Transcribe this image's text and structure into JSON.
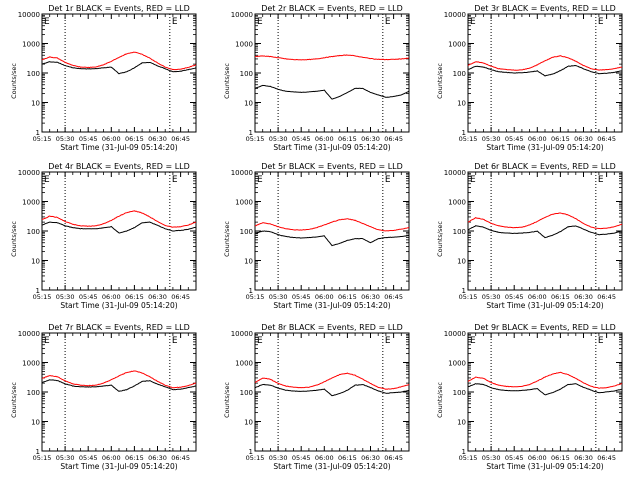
{
  "common": {
    "xlabel": "Start Time (31-Jul-09 05:14:20)",
    "ylabel": "Counts/sec",
    "x_ticks": [
      "05:15",
      "05:30",
      "05:45",
      "06:00",
      "06:15",
      "06:30",
      "06:45"
    ],
    "y_ticks": [
      "1",
      "10",
      "100",
      "1000",
      "10000"
    ],
    "marker": "E",
    "colors": {
      "events": "#000000",
      "lld": "#ff0000"
    }
  },
  "chart_data": [
    {
      "type": "line",
      "title": "Det 1r BLACK = Events, RED = LLD",
      "x_unit": "minutes after 05:15",
      "xlim": [
        0,
        100
      ],
      "ylim": [
        1,
        10000
      ],
      "yscale": "log",
      "vlines": [
        15,
        83
      ],
      "x": [
        0,
        5,
        10,
        15,
        20,
        25,
        30,
        35,
        40,
        45,
        50,
        55,
        60,
        65,
        70,
        75,
        80,
        85,
        90,
        95,
        100
      ],
      "series": [
        {
          "name": "BLACK = Events",
          "color": "#000000",
          "values": [
            200,
            240,
            230,
            180,
            150,
            140,
            138,
            140,
            150,
            160,
            95,
            110,
            150,
            220,
            230,
            175,
            140,
            110,
            115,
            130,
            150
          ]
        },
        {
          "name": "RED = LLD",
          "color": "#ff0000",
          "values": [
            280,
            350,
            320,
            230,
            180,
            160,
            155,
            160,
            190,
            250,
            340,
            450,
            510,
            430,
            320,
            220,
            160,
            130,
            135,
            155,
            190
          ]
        }
      ]
    },
    {
      "type": "line",
      "title": "Det 2r BLACK = Events, RED = LLD",
      "x_unit": "minutes after 05:15",
      "xlim": [
        0,
        100
      ],
      "ylim": [
        1,
        10000
      ],
      "yscale": "log",
      "vlines": [
        15,
        83
      ],
      "x": [
        0,
        5,
        10,
        15,
        20,
        25,
        30,
        35,
        40,
        45,
        50,
        55,
        60,
        65,
        70,
        75,
        80,
        85,
        90,
        95,
        100
      ],
      "series": [
        {
          "name": "BLACK = Events",
          "color": "#000000",
          "values": [
            30,
            38,
            35,
            28,
            24,
            23,
            22,
            23,
            24,
            26,
            13,
            16,
            22,
            30,
            30,
            22,
            18,
            15,
            16,
            18,
            24
          ]
        },
        {
          "name": "RED = LLD",
          "color": "#ff0000",
          "values": [
            360,
            380,
            360,
            330,
            300,
            285,
            280,
            285,
            300,
            330,
            360,
            390,
            410,
            380,
            340,
            310,
            290,
            285,
            290,
            300,
            320
          ]
        }
      ]
    },
    {
      "type": "line",
      "title": "Det 3r BLACK = Events, RED = LLD",
      "x_unit": "minutes after 05:15",
      "xlim": [
        0,
        100
      ],
      "ylim": [
        1,
        10000
      ],
      "yscale": "log",
      "vlines": [
        15,
        83
      ],
      "x": [
        0,
        5,
        10,
        15,
        20,
        25,
        30,
        35,
        40,
        45,
        50,
        55,
        60,
        65,
        70,
        75,
        80,
        85,
        90,
        95,
        100
      ],
      "series": [
        {
          "name": "BLACK = Events",
          "color": "#000000",
          "values": [
            130,
            170,
            160,
            130,
            110,
            105,
            100,
            102,
            108,
            118,
            80,
            92,
            120,
            170,
            180,
            140,
            110,
            95,
            98,
            105,
            120
          ]
        },
        {
          "name": "RED = LLD",
          "color": "#ff0000",
          "values": [
            180,
            240,
            220,
            170,
            140,
            130,
            125,
            128,
            145,
            190,
            260,
            340,
            380,
            330,
            250,
            180,
            140,
            125,
            130,
            140,
            160
          ]
        }
      ]
    },
    {
      "type": "line",
      "title": "Det 4r BLACK = Events, RED = LLD",
      "x_unit": "minutes after 05:15",
      "xlim": [
        0,
        100
      ],
      "ylim": [
        1,
        10000
      ],
      "yscale": "log",
      "vlines": [
        15,
        83
      ],
      "x": [
        0,
        5,
        10,
        15,
        20,
        25,
        30,
        35,
        40,
        45,
        50,
        55,
        60,
        65,
        70,
        75,
        80,
        85,
        90,
        95,
        100
      ],
      "series": [
        {
          "name": "BLACK = Events",
          "color": "#000000",
          "values": [
            160,
            200,
            190,
            150,
            130,
            120,
            118,
            120,
            128,
            140,
            85,
            100,
            130,
            190,
            200,
            155,
            120,
            100,
            105,
            115,
            135
          ]
        },
        {
          "name": "RED = LLD",
          "color": "#ff0000",
          "values": [
            240,
            320,
            290,
            210,
            170,
            150,
            145,
            150,
            175,
            230,
            320,
            420,
            480,
            410,
            300,
            210,
            155,
            135,
            140,
            160,
            200
          ]
        }
      ]
    },
    {
      "type": "line",
      "title": "Det 5r BLACK = Events, RED = LLD",
      "x_unit": "minutes after 05:15",
      "xlim": [
        0,
        100
      ],
      "ylim": [
        1,
        10000
      ],
      "yscale": "log",
      "vlines": [
        15,
        83
      ],
      "x": [
        0,
        5,
        10,
        15,
        20,
        25,
        30,
        35,
        40,
        45,
        50,
        55,
        60,
        65,
        70,
        75,
        80,
        85,
        90,
        95,
        100
      ],
      "series": [
        {
          "name": "BLACK = Events",
          "color": "#000000",
          "values": [
            80,
            100,
            95,
            75,
            65,
            60,
            58,
            60,
            63,
            68,
            32,
            38,
            48,
            55,
            55,
            40,
            55,
            60,
            62,
            65,
            70
          ]
        },
        {
          "name": "RED = LLD",
          "color": "#ff0000",
          "values": [
            150,
            190,
            175,
            140,
            120,
            110,
            108,
            112,
            130,
            160,
            200,
            240,
            260,
            230,
            180,
            140,
            110,
            100,
            105,
            115,
            130
          ]
        }
      ]
    },
    {
      "type": "line",
      "title": "Det 6r BLACK = Events, RED = LLD",
      "x_unit": "minutes after 05:15",
      "xlim": [
        0,
        100
      ],
      "ylim": [
        1,
        10000
      ],
      "yscale": "log",
      "vlines": [
        15,
        83
      ],
      "x": [
        0,
        5,
        10,
        15,
        20,
        25,
        30,
        35,
        40,
        45,
        50,
        55,
        60,
        65,
        70,
        75,
        80,
        85,
        90,
        95,
        100
      ],
      "series": [
        {
          "name": "BLACK = Events",
          "color": "#000000",
          "values": [
            110,
            150,
            135,
            105,
            90,
            85,
            83,
            85,
            90,
            98,
            60,
            72,
            95,
            140,
            150,
            115,
            90,
            75,
            78,
            85,
            100
          ]
        },
        {
          "name": "RED = LLD",
          "color": "#ff0000",
          "values": [
            200,
            280,
            250,
            180,
            150,
            135,
            130,
            135,
            160,
            210,
            290,
            370,
            410,
            350,
            260,
            180,
            135,
            120,
            125,
            140,
            170
          ]
        }
      ]
    },
    {
      "type": "line",
      "title": "Det 7r BLACK = Events, RED = LLD",
      "x_unit": "minutes after 05:15",
      "xlim": [
        0,
        100
      ],
      "ylim": [
        1,
        10000
      ],
      "yscale": "log",
      "vlines": [
        15,
        83
      ],
      "x": [
        0,
        5,
        10,
        15,
        20,
        25,
        30,
        35,
        40,
        45,
        50,
        55,
        60,
        65,
        70,
        75,
        80,
        85,
        90,
        95,
        100
      ],
      "series": [
        {
          "name": "BLACK = Events",
          "color": "#000000",
          "values": [
            210,
            260,
            245,
            190,
            160,
            150,
            148,
            150,
            160,
            170,
            105,
            120,
            160,
            230,
            240,
            185,
            150,
            120,
            125,
            140,
            160
          ]
        },
        {
          "name": "RED = LLD",
          "color": "#ff0000",
          "values": [
            290,
            360,
            330,
            240,
            190,
            170,
            165,
            170,
            200,
            260,
            350,
            460,
            520,
            440,
            330,
            230,
            170,
            140,
            145,
            165,
            200
          ]
        }
      ]
    },
    {
      "type": "line",
      "title": "Det 8r BLACK = Events, RED = LLD",
      "x_unit": "minutes after 05:15",
      "xlim": [
        0,
        100
      ],
      "ylim": [
        1,
        10000
      ],
      "yscale": "log",
      "vlines": [
        15,
        83
      ],
      "x": [
        0,
        5,
        10,
        15,
        20,
        25,
        30,
        35,
        40,
        45,
        50,
        55,
        60,
        65,
        70,
        75,
        80,
        85,
        90,
        95,
        100
      ],
      "series": [
        {
          "name": "BLACK = Events",
          "color": "#000000",
          "values": [
            140,
            180,
            170,
            135,
            115,
            108,
            105,
            108,
            115,
            125,
            75,
            88,
            115,
            170,
            180,
            140,
            110,
            90,
            95,
            100,
            115
          ]
        },
        {
          "name": "RED = LLD",
          "color": "#ff0000",
          "values": [
            210,
            300,
            270,
            195,
            160,
            145,
            140,
            145,
            170,
            220,
            300,
            390,
            430,
            370,
            270,
            195,
            145,
            125,
            130,
            150,
            180
          ]
        }
      ]
    },
    {
      "type": "line",
      "title": "Det 9r BLACK = Events, RED = LLD",
      "x_unit": "minutes after 05:15",
      "xlim": [
        0,
        100
      ],
      "ylim": [
        1,
        10000
      ],
      "yscale": "log",
      "vlines": [
        15,
        83
      ],
      "x": [
        0,
        5,
        10,
        15,
        20,
        25,
        30,
        35,
        40,
        45,
        50,
        55,
        60,
        65,
        70,
        75,
        80,
        85,
        90,
        95,
        100
      ],
      "series": [
        {
          "name": "BLACK = Events",
          "color": "#000000",
          "values": [
            150,
            190,
            180,
            140,
            120,
            112,
            110,
            112,
            120,
            130,
            80,
            95,
            125,
            180,
            190,
            145,
            115,
            95,
            100,
            108,
            125
          ]
        },
        {
          "name": "RED = LLD",
          "color": "#ff0000",
          "values": [
            230,
            320,
            290,
            210,
            170,
            155,
            150,
            155,
            180,
            235,
            320,
            410,
            460,
            390,
            290,
            205,
            155,
            135,
            140,
            160,
            195
          ]
        }
      ]
    }
  ]
}
